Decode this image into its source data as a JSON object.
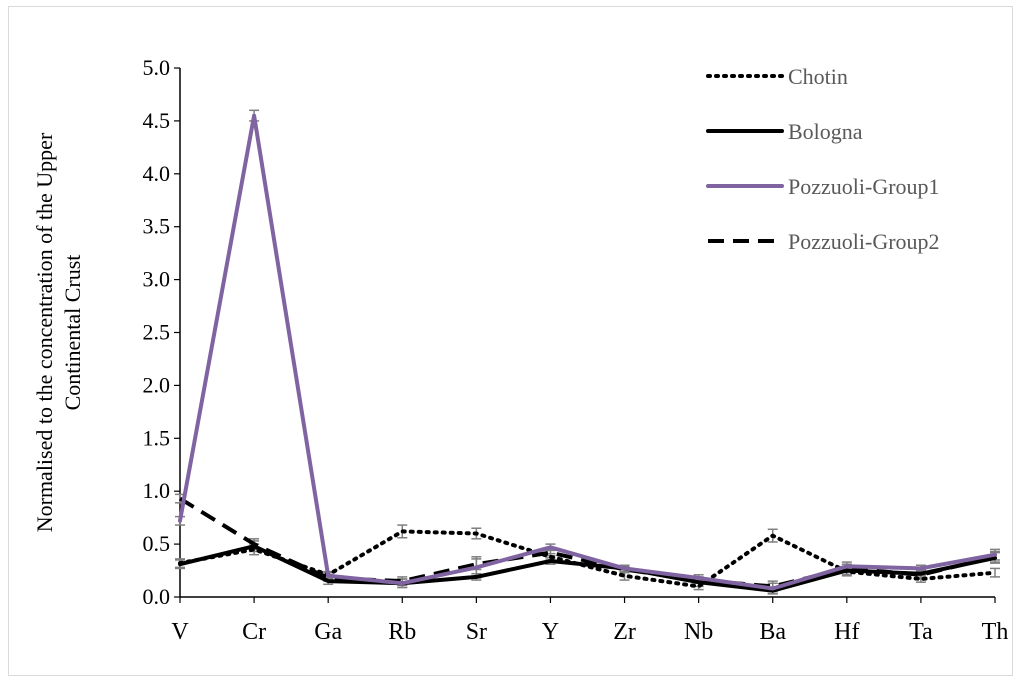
{
  "chart_data": {
    "type": "line",
    "title": "",
    "xlabel": "",
    "ylabel_lines": [
      "Normalised to the concentration of the Upper",
      "Continental Crust"
    ],
    "ylim": [
      0,
      5
    ],
    "y_ticks": [
      "0.0",
      "0.5",
      "1.0",
      "1.5",
      "2.0",
      "2.5",
      "3.0",
      "3.5",
      "4.0",
      "4.5",
      "5.0"
    ],
    "categories": [
      "V",
      "Cr",
      "Ga",
      "Rb",
      "Sr",
      "Y",
      "Zr",
      "Nb",
      "Ba",
      "Hf",
      "Ta",
      "Th"
    ],
    "grid": false,
    "legend_position": "top-right",
    "series": [
      {
        "name": "Chotin",
        "style": "dotted",
        "color": "#000000",
        "values": [
          0.32,
          0.45,
          0.21,
          0.62,
          0.6,
          0.38,
          0.2,
          0.1,
          0.58,
          0.24,
          0.17,
          0.23
        ],
        "errors": [
          0.04,
          0.05,
          0.03,
          0.06,
          0.05,
          0.03,
          0.04,
          0.03,
          0.06,
          0.04,
          0.03,
          0.04
        ]
      },
      {
        "name": "Bologna",
        "style": "solid",
        "color": "#000000",
        "values": [
          0.31,
          0.48,
          0.15,
          0.13,
          0.19,
          0.34,
          0.27,
          0.14,
          0.06,
          0.25,
          0.22,
          0.37
        ],
        "errors": [
          0.04,
          0.05,
          0.03,
          0.04,
          0.03,
          0.03,
          0.03,
          0.04,
          0.03,
          0.04,
          0.04,
          0.05
        ]
      },
      {
        "name": "Pozzuoli-Group1",
        "style": "solid",
        "color": "#8064a2",
        "values": [
          0.72,
          4.55,
          0.2,
          0.13,
          0.28,
          0.47,
          0.27,
          0.18,
          0.08,
          0.29,
          0.27,
          0.4
        ],
        "errors": [
          0.04,
          0.05,
          0.03,
          0.04,
          0.1,
          0.03,
          0.03,
          0.03,
          0.05,
          0.04,
          0.03,
          0.05
        ]
      },
      {
        "name": "Pozzuoli-Group2",
        "style": "dashed",
        "color": "#000000",
        "values": [
          0.93,
          0.5,
          0.18,
          0.15,
          0.31,
          0.42,
          0.26,
          0.16,
          0.1,
          0.27,
          0.21,
          0.38
        ],
        "errors": [
          0.04,
          0.05,
          0.03,
          0.04,
          0.05,
          0.03,
          0.03,
          0.03,
          0.05,
          0.04,
          0.04,
          0.05
        ]
      }
    ]
  }
}
